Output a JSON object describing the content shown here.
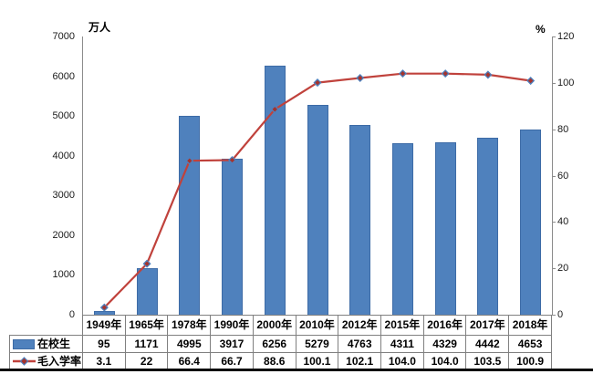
{
  "figure": {
    "background": "#ffffff",
    "bottom_rule_color": "#0d0d0d"
  },
  "chart": {
    "left_axis": {
      "title": "万人",
      "min": 0,
      "max": 7000,
      "step": 1000
    },
    "right_axis": {
      "title": "%",
      "min": 0,
      "max": 120,
      "step": 20
    },
    "colors": {
      "bar_fill": "#4f81bd",
      "bar_border": "#3d6ba6",
      "line": "#c0423c",
      "marker_fill": "#a5332d",
      "marker_border": "#4f81bd",
      "axis_line": "#8c8c8c",
      "table_border": "#808080",
      "text": "#000000"
    }
  },
  "chart_data": {
    "type": "bar",
    "combo": "bar+line",
    "categories": [
      "1949年",
      "1965年",
      "1978年",
      "1990年",
      "2000年",
      "2010年",
      "2012年",
      "2015年",
      "2016年",
      "2017年",
      "2018年"
    ],
    "series": [
      {
        "name": "在校生",
        "type": "bar",
        "axis": "left",
        "values": [
          95,
          1171,
          4995,
          3917,
          6256,
          5279,
          4763,
          4311,
          4329,
          4442,
          4653
        ]
      },
      {
        "name": "毛入学率",
        "type": "line",
        "axis": "right",
        "values": [
          3.1,
          22,
          66.4,
          66.7,
          88.6,
          100.1,
          102.1,
          104.0,
          104.0,
          103.5,
          100.9
        ]
      }
    ],
    "left_ylabel": "万人",
    "right_ylabel": "%",
    "left_ylim": [
      0,
      7000
    ],
    "right_ylim": [
      0,
      120
    ],
    "grid": false,
    "legend_position": "data-table-left"
  },
  "table": {
    "row_labels": [
      "在校生",
      "毛入学率"
    ],
    "columns": [
      "1949年",
      "1965年",
      "1978年",
      "1990年",
      "2000年",
      "2010年",
      "2012年",
      "2015年",
      "2016年",
      "2017年",
      "2018年"
    ],
    "display_rows": [
      [
        "95",
        "1171",
        "4995",
        "3917",
        "6256",
        "5279",
        "4763",
        "4311",
        "4329",
        "4442",
        "4653"
      ],
      [
        "3.1",
        "22",
        "66.4",
        "66.7",
        "88.6",
        "100.1",
        "102.1",
        "104.0",
        "104.0",
        "103.5",
        "100.9"
      ]
    ]
  }
}
